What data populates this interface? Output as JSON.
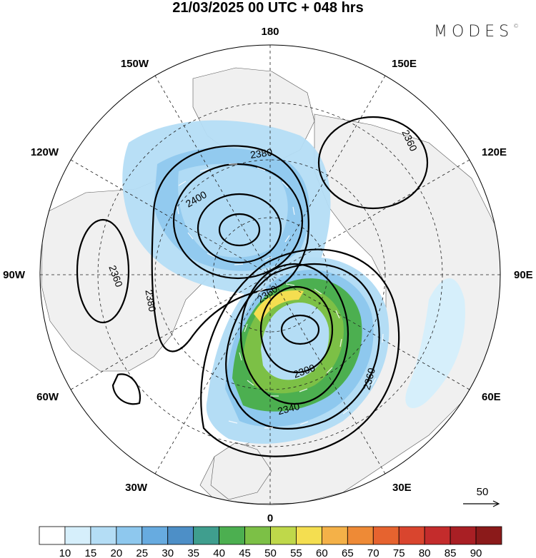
{
  "title": "21/03/2025  00 UTC  + 048 hrs",
  "brand": "MODES",
  "brand_mark": "©",
  "longitude_labels": {
    "top": "180",
    "bottom": "0",
    "left": "90W",
    "right": "90E",
    "w150": "150W",
    "e150": "150E",
    "w120": "120W",
    "e120": "120E",
    "w60": "60W",
    "e60": "60E",
    "w30": "30W",
    "e30": "30E"
  },
  "contour_labels": {
    "c2360_ne": "2360",
    "c2380_low1": "2380",
    "c2400": "2400",
    "c2360_w": "2360",
    "c2380_w": "2380",
    "c2360_mid": "2360",
    "c2300": "2300",
    "c2340": "2340",
    "c2360_se": "2360"
  },
  "wind_reference": {
    "label": "50"
  },
  "colorbar": {
    "ticks": [
      "10",
      "15",
      "20",
      "25",
      "30",
      "35",
      "40",
      "45",
      "50",
      "55",
      "60",
      "65",
      "70",
      "75",
      "80",
      "85",
      "90"
    ],
    "colors": [
      "#ffffff",
      "#d6effb",
      "#b4ddf5",
      "#8ec8ee",
      "#67abe0",
      "#4d8fc7",
      "#3f9e8e",
      "#4caf50",
      "#7cc046",
      "#bfd84a",
      "#f4de50",
      "#f4b148",
      "#ee8a36",
      "#e6632f",
      "#d9452e",
      "#c42c2c",
      "#a91f24",
      "#8b1a1a"
    ]
  },
  "colors": {
    "land": "#f0f0f0",
    "ocean": "#ffffff",
    "contour": "#000000"
  }
}
